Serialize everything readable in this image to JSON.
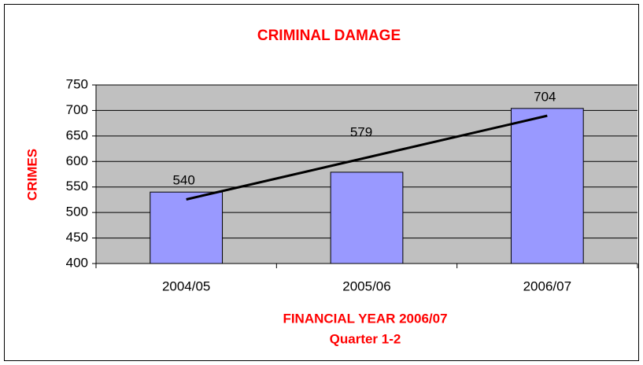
{
  "chart_data": {
    "type": "bar",
    "title": "CRIMINAL DAMAGE",
    "ylabel": "CRIMES",
    "xlabel": [
      "FINANCIAL YEAR 2006/07",
      "Quarter 1-2"
    ],
    "categories": [
      "2004/05",
      "2005/06",
      "2006/07"
    ],
    "values": [
      540,
      579,
      704
    ],
    "color": "#9999ff",
    "trendline": "linear",
    "ylim": [
      400,
      750
    ],
    "yticks": [
      400,
      450,
      500,
      550,
      600,
      650,
      700,
      750
    ],
    "grid": true
  }
}
